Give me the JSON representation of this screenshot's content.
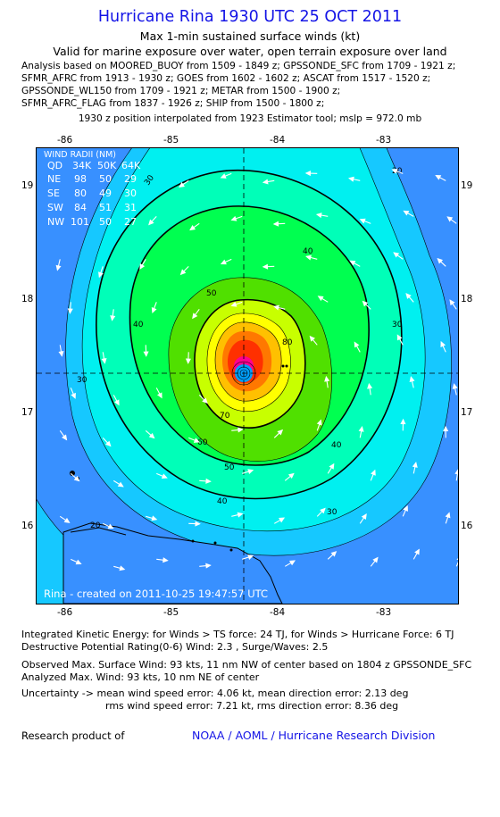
{
  "header": {
    "title": "Hurricane Rina 1930 UTC 25 OCT 2011",
    "subtitle": "Max 1-min sustained surface winds (kt)",
    "valid": "Valid for marine exposure over water, open terrain exposure over land",
    "analysis": [
      "Analysis based on MOORED_BUOY from 1509 - 1849 z; GPSSONDE_SFC from 1709 - 1921 z;",
      "SFMR_AFRC from 1913 - 1930 z; GOES from 1602 - 1602 z; ASCAT from 1517 - 1520 z;",
      "GPSSONDE_WL150 from 1709 - 1921 z; METAR from 1500 - 1900 z;",
      "SFMR_AFRC_FLAG from 1837 - 1926 z; SHIP from 1500 - 1800 z;"
    ],
    "position_note": "1930 z position interpolated from 1923 Estimator tool; mslp = 972.0 mb"
  },
  "map": {
    "x_ticks": [
      "-86",
      "-85",
      "-84",
      "-83"
    ],
    "y_ticks": [
      "19",
      "18",
      "17",
      "16"
    ],
    "contour_levels": [
      "20",
      "30",
      "40",
      "50",
      "60",
      "70",
      "80"
    ],
    "watermark": "Rina - created on 2011-10-25 19:47:57 UTC",
    "wind_radii": {
      "title": "WIND RADII (NM)",
      "header": [
        "QD",
        "34K",
        "50K",
        "64K"
      ],
      "rows": [
        [
          "NE",
          "98",
          "50",
          "29"
        ],
        [
          "SE",
          "80",
          "49",
          "30"
        ],
        [
          "SW",
          "84",
          "51",
          "31"
        ],
        [
          "NW",
          "101",
          "50",
          "27"
        ]
      ]
    },
    "colors": {
      "ocean_light": "#3890ff",
      "c20": "#16c8ff",
      "c30": "#00f0f0",
      "c40": "#00ffb8",
      "c50": "#00ff50",
      "c60": "#50e000",
      "c70": "#c8ff00",
      "c75": "#ffff00",
      "c80": "#ffc000",
      "c85": "#ff7800",
      "c90": "#ff3000",
      "core": "#ff0090",
      "land": "#000000"
    }
  },
  "footer": {
    "ike": "Integrated Kinetic Energy:  for Winds > TS force: 24 TJ,  for Winds > Hurricane Force: 6 TJ",
    "dpr": "Destructive Potential Rating(0-6)   Wind: 2.3 , Surge/Waves: 2.5",
    "observed": "Observed Max. Surface Wind: 93 kts, 11 nm NW of center based on 1804 z GPSSONDE_SFC",
    "analyzed": "Analyzed Max. Wind: 93 kts, 10 nm NE of center",
    "uncertainty": "Uncertainty -> mean wind speed error: 4.06 kt,   mean direction error: 2.13 deg",
    "uncertainty2": "rms wind speed error: 7.21 kt,   rms direction error: 8.36 deg",
    "research": "Research product of",
    "org": "NOAA / AOML / Hurricane Research Division"
  }
}
